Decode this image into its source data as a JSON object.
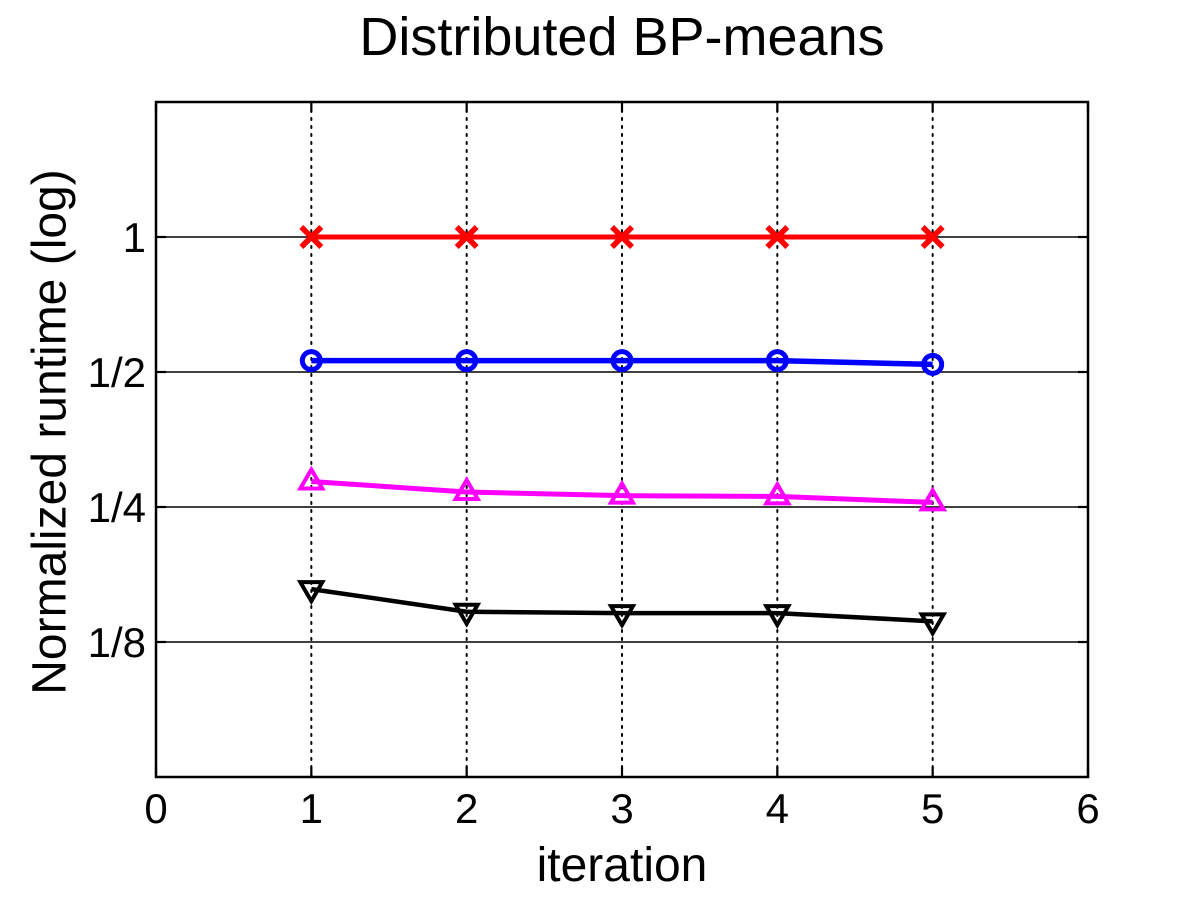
{
  "chart_data": {
    "type": "line",
    "title": "Distributed BP-means",
    "xlabel": "iteration",
    "ylabel": "Normalized runtime (log)",
    "x": [
      1,
      2,
      3,
      4,
      5
    ],
    "series": [
      {
        "name": "red-x-series",
        "color": "#ff0000",
        "marker": "x",
        "line_width": 5,
        "values": [
          1.0,
          1.0,
          1.0,
          1.0,
          1.0
        ]
      },
      {
        "name": "blue-circle-series",
        "color": "#0000ff",
        "marker": "circle",
        "line_width": 5.5,
        "values": [
          0.53,
          0.53,
          0.53,
          0.53,
          0.52
        ]
      },
      {
        "name": "magenta-triangle-series",
        "color": "#ff00ff",
        "marker": "triangle-up",
        "line_width": 5,
        "values": [
          0.285,
          0.27,
          0.265,
          0.264,
          0.256
        ]
      },
      {
        "name": "black-triangle-series",
        "color": "#000000",
        "marker": "triangle-down",
        "line_width": 4.5,
        "values": [
          0.164,
          0.146,
          0.145,
          0.145,
          0.139
        ]
      }
    ],
    "xlim": [
      0,
      6
    ],
    "ylim_log2": [
      -4,
      1
    ],
    "xticks": [
      0,
      1,
      2,
      3,
      4,
      5,
      6
    ],
    "yticks": [
      {
        "value": 1,
        "label": "1"
      },
      {
        "value": 0.5,
        "label": "1/2"
      },
      {
        "value": 0.25,
        "label": "1/4"
      },
      {
        "value": 0.125,
        "label": "1/8"
      }
    ],
    "grid": {
      "horizontal_style": "solid",
      "vertical_style": "dotted",
      "vertical_at": [
        1,
        2,
        3,
        4,
        5
      ],
      "color": "#000000"
    },
    "axis_color": "#000000",
    "background": "#ffffff",
    "legend": null
  }
}
